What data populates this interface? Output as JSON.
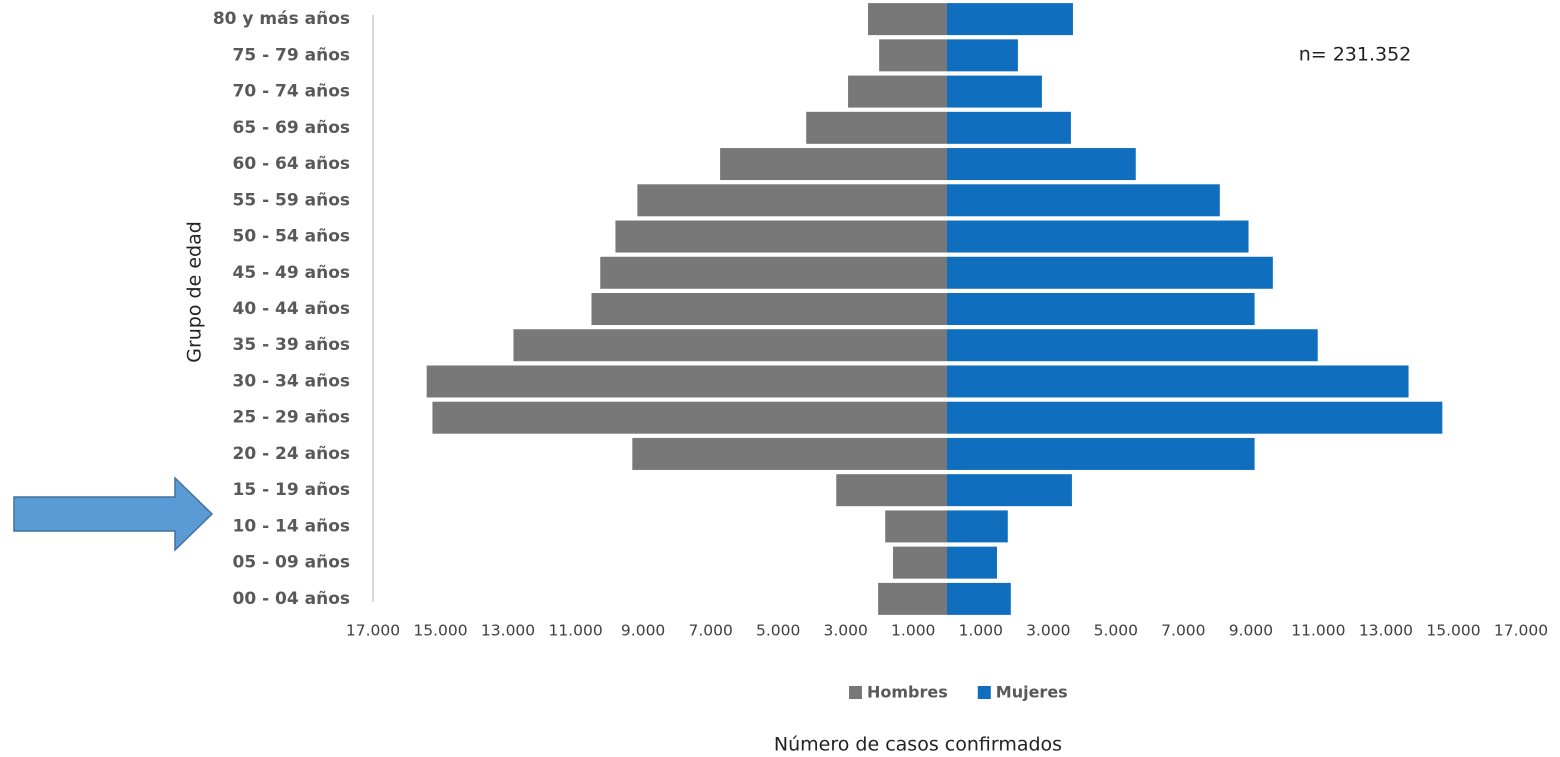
{
  "chart_data": {
    "type": "bar",
    "categories": [
      "80 y más años",
      "75 - 79 años",
      "70 - 74 años",
      "65 - 69 años",
      "60 - 64 años",
      "55 - 59 años",
      "50 - 54 años",
      "45 - 49 años",
      "40 - 44 años",
      "35 - 39 años",
      "30 - 34 años",
      "25 - 29 años",
      "20 - 24 años",
      "15 - 19 años",
      "10 - 14 años",
      "05 - 09 años",
      "00 - 04 años"
    ],
    "series": [
      {
        "name": "Hombres",
        "color": "#787878",
        "values": [
          -2340,
          -2010,
          -2930,
          -4170,
          -6720,
          -9170,
          -9820,
          -10270,
          -10530,
          -12840,
          -15410,
          -15240,
          -9320,
          -3280,
          -1830,
          -1600,
          -2040
        ]
      },
      {
        "name": "Mujeres",
        "color": "#106ebe",
        "values": [
          3730,
          2100,
          2810,
          3670,
          5590,
          8080,
          8930,
          9650,
          9110,
          10980,
          13670,
          14670,
          9110,
          3700,
          1800,
          1480,
          1890
        ]
      }
    ],
    "xlim": [
      -17000,
      17000
    ],
    "xticks": [
      {
        "value": -17000,
        "label": "17.000"
      },
      {
        "value": -15000,
        "label": "15.000"
      },
      {
        "value": -13000,
        "label": "13.000"
      },
      {
        "value": -11000,
        "label": "11.000"
      },
      {
        "value": -9000,
        "label": "9.000"
      },
      {
        "value": -7000,
        "label": "7.000"
      },
      {
        "value": -5000,
        "label": "5.000"
      },
      {
        "value": -3000,
        "label": "3.000"
      },
      {
        "value": -1000,
        "label": "1.000"
      },
      {
        "value": 1000,
        "label": "1.000"
      },
      {
        "value": 3000,
        "label": "3.000"
      },
      {
        "value": 5000,
        "label": "5.000"
      },
      {
        "value": 7000,
        "label": "7.000"
      },
      {
        "value": 9000,
        "label": "9.000"
      },
      {
        "value": 11000,
        "label": "11.000"
      },
      {
        "value": 13000,
        "label": "13.000"
      },
      {
        "value": 15000,
        "label": "15.000"
      },
      {
        "value": 17000,
        "label": "17.000"
      }
    ],
    "xlabel": "Número de casos confirmados",
    "ylabel": "Grupo de edad",
    "annotation": "n= 231.352",
    "legend": "bottom"
  }
}
